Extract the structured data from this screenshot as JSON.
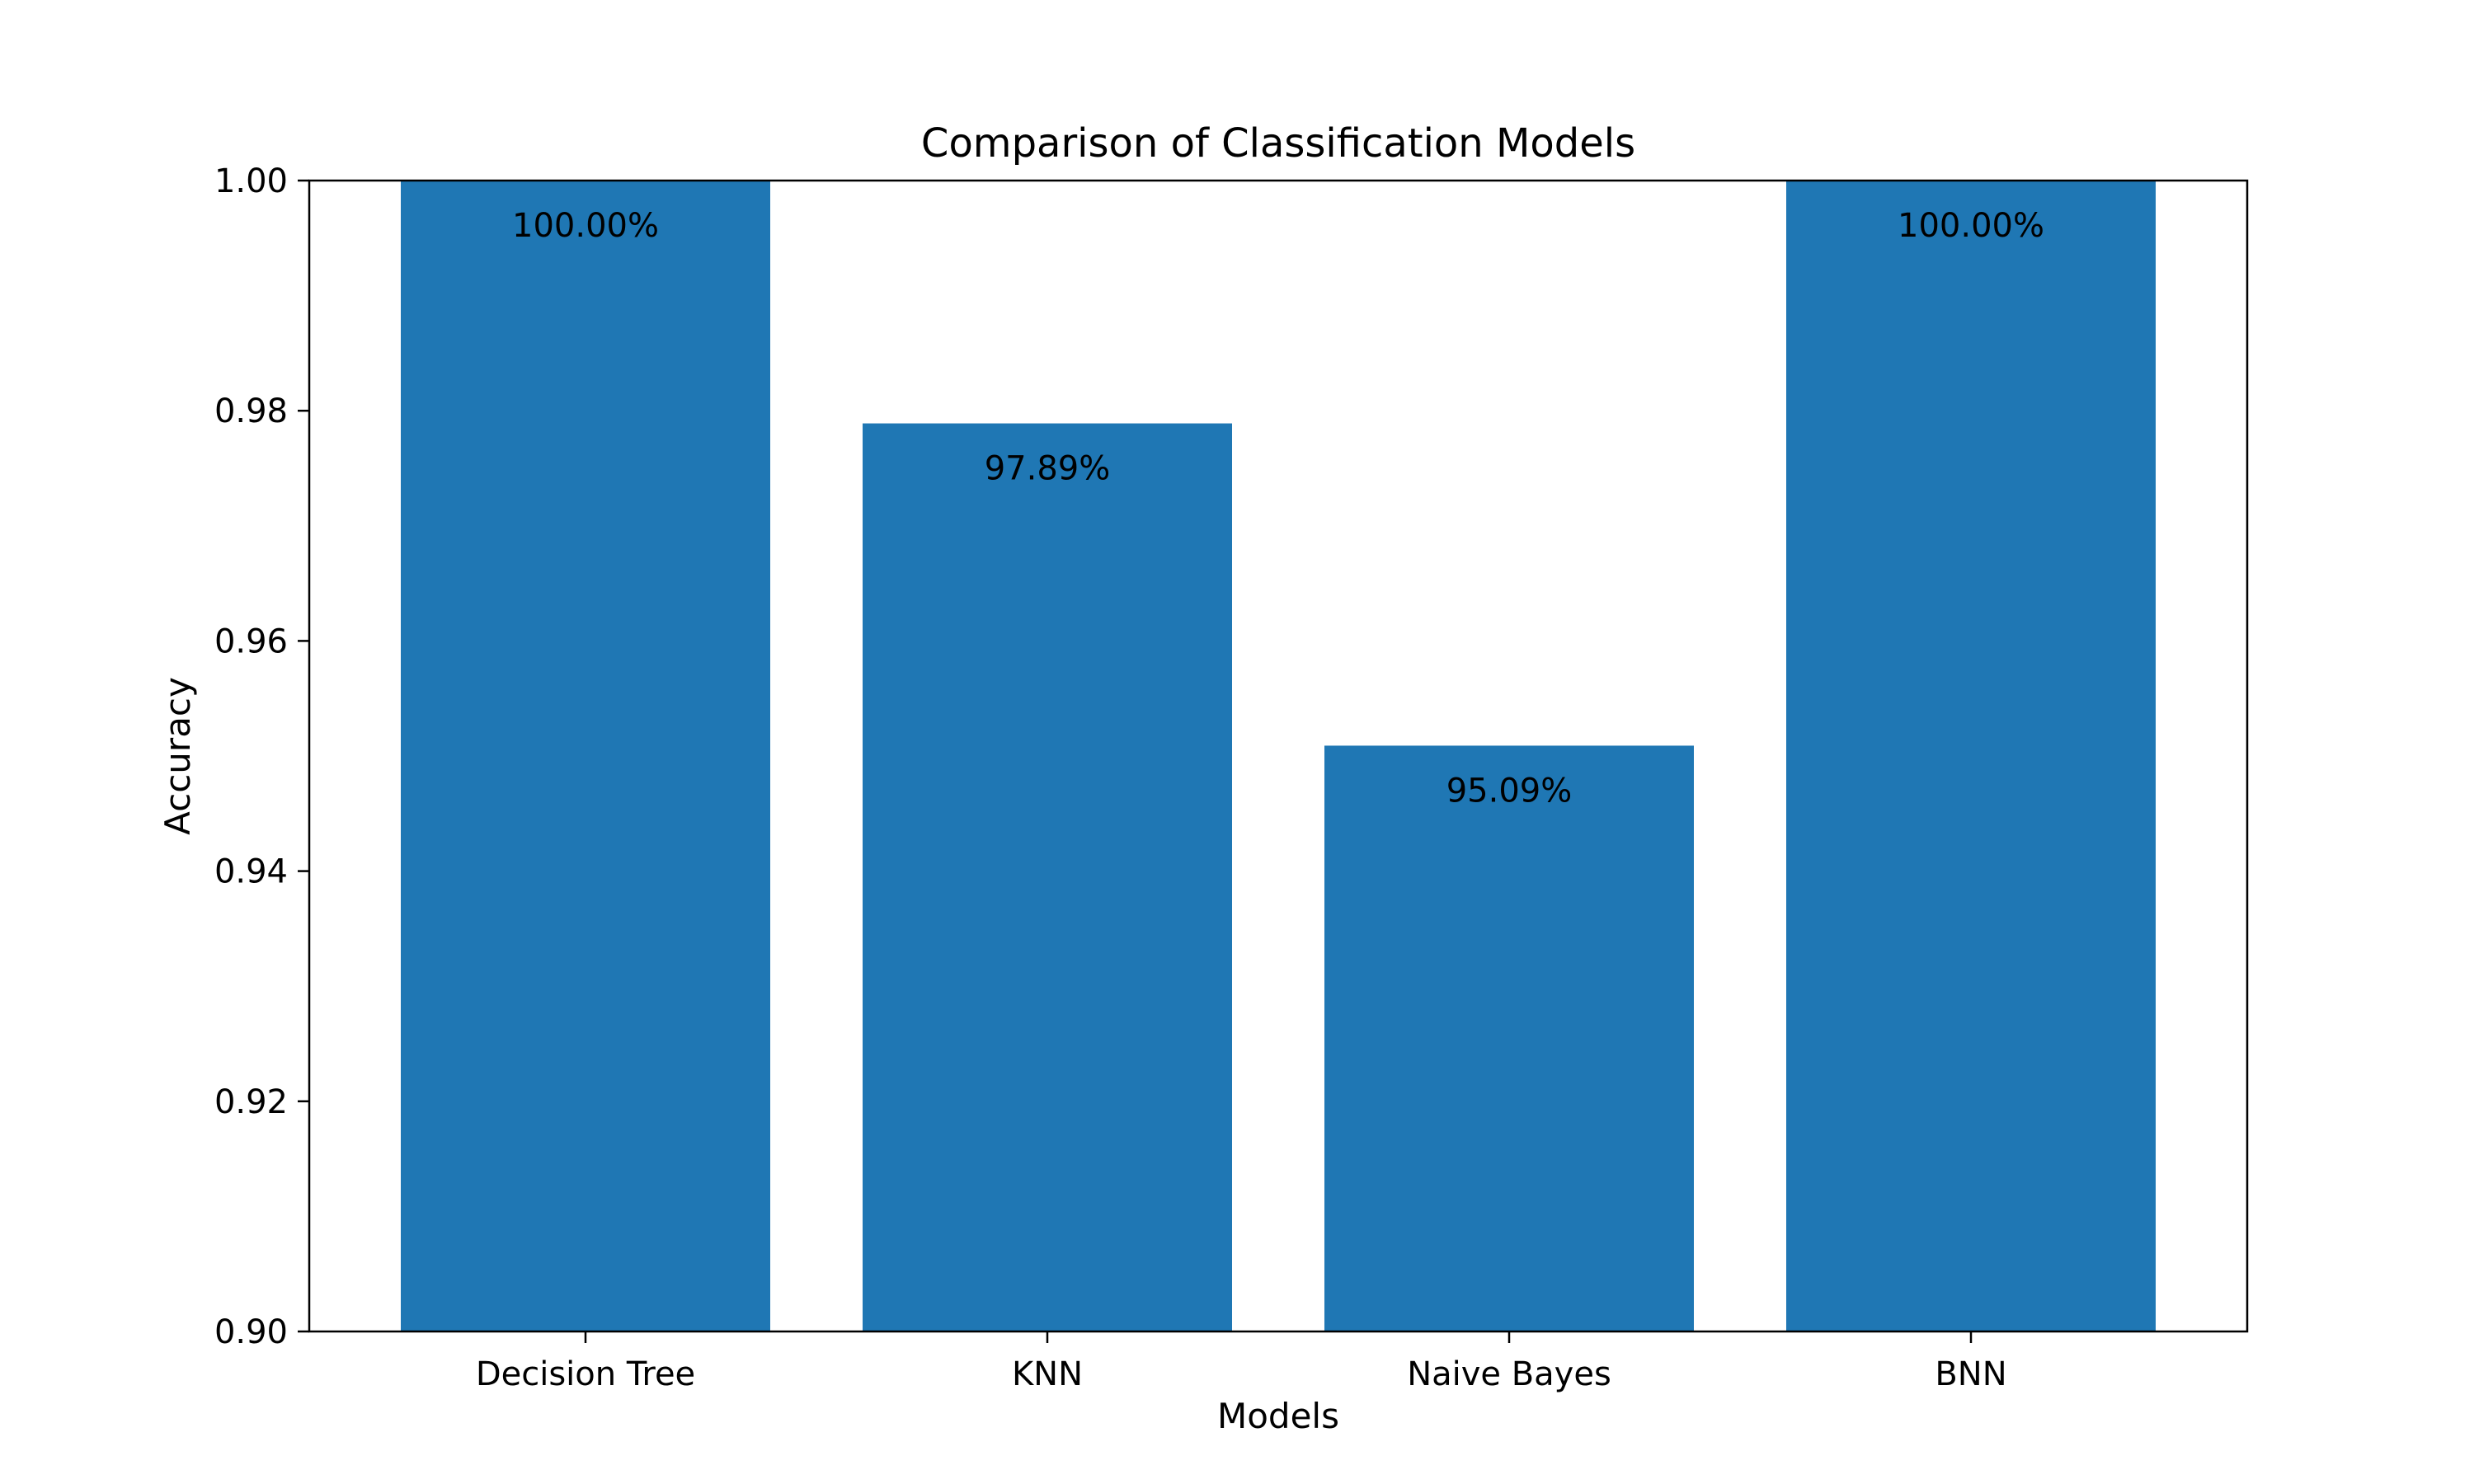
{
  "chart_data": {
    "type": "bar",
    "title": "Comparison of Classification Models",
    "xlabel": "Models",
    "ylabel": "Accuracy",
    "categories": [
      "Decision Tree",
      "KNN",
      "Naive Bayes",
      "BNN"
    ],
    "values": [
      1.0,
      0.9789,
      0.9509,
      1.0
    ],
    "data_labels": [
      "100.00%",
      "97.89%",
      "95.09%",
      "100.00%"
    ],
    "ylim": [
      0.9,
      1.0
    ],
    "yticks": [
      0.9,
      0.92,
      0.94,
      0.96,
      0.98,
      1.0
    ],
    "ytick_labels": [
      "0.90",
      "0.92",
      "0.94",
      "0.96",
      "0.98",
      "1.00"
    ],
    "bar_color": "#1f77b4",
    "grid": false,
    "legend": "none"
  }
}
